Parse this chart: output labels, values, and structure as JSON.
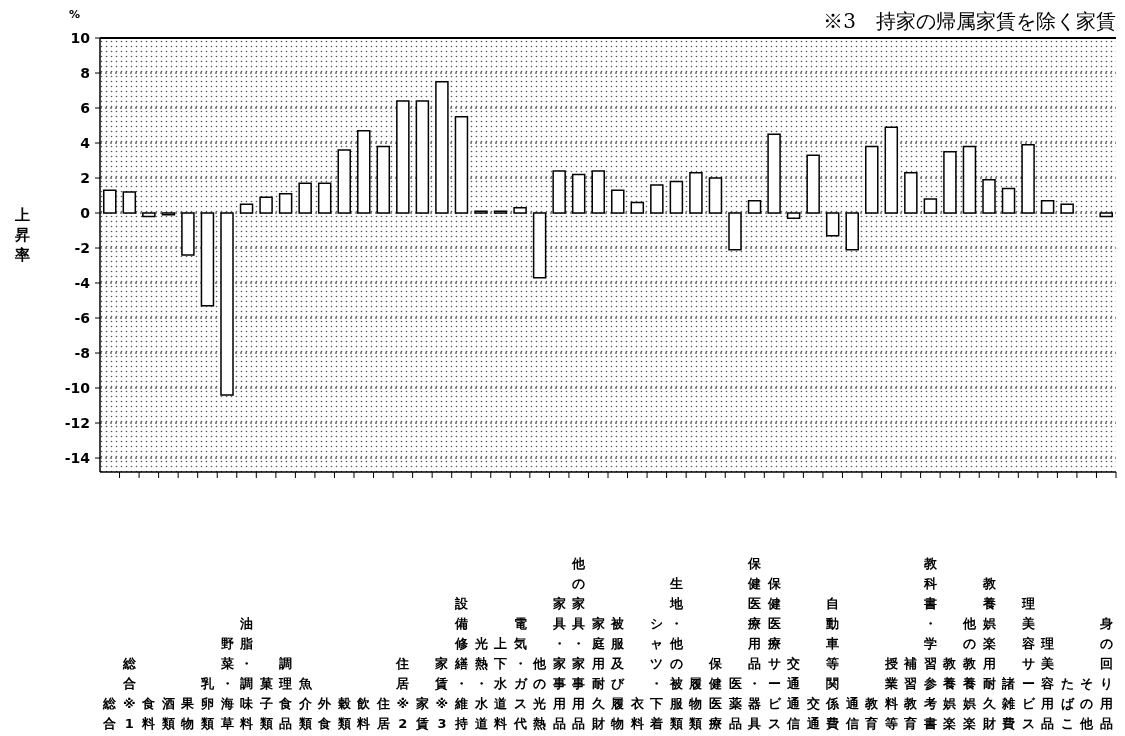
{
  "chart_data": {
    "type": "bar",
    "ylabel": "上昇率",
    "annotations": [
      "%",
      "※3　持家の帰属家賃を除く家賃"
    ],
    "categories": [
      "総合",
      "総合※1",
      "　食料",
      "　　酒類",
      "　　果物",
      "　　乳卵類",
      "　　野菜・海草",
      "　　油脂・調味料",
      "　　菓子類",
      "　　調理食品",
      "　　魚介類",
      "　　外食",
      "　　穀類",
      "　　飲料",
      "　住居",
      "　住居※2",
      "　　家賃",
      "　　家賃※3",
      "　　設備修繕・維持",
      "　光熱・水道",
      "　　上下水道料",
      "　　電気・ガス代",
      "　　他の光熱",
      "　家具・家事用品",
      "　　他の家具・家事用品",
      "　　家庭用耐久財",
      "　被服及び履物",
      "　　衣料",
      "　　シャツ・下着",
      "　　生地・他の被服類",
      "　　履物類",
      "　保健医療",
      "　　医薬品",
      "　　保健医療用品・器具",
      "　　保健医療サービス",
      "　交通通信",
      "　　交通",
      "　　自動車等関係費",
      "　　通信",
      "　教育",
      "　　授業料等",
      "　　補習教育",
      "　　教科書・学習参考書",
      "　教養娯楽",
      "　　他の教養娯楽",
      "　　教養娯楽用耐久財",
      "　諸雑費",
      "　　理美容サービス",
      "　　理美容用品",
      "　　たばこ",
      "　　その他",
      "　　身の回り用品"
    ],
    "values": [
      1.3,
      1.2,
      -0.2,
      -0.1,
      -2.4,
      -5.3,
      -10.4,
      0.5,
      0.9,
      1.1,
      1.7,
      1.7,
      3.6,
      4.7,
      3.8,
      6.4,
      6.4,
      7.5,
      5.5,
      0.1,
      0.1,
      0.3,
      -3.7,
      2.4,
      2.2,
      2.4,
      1.3,
      0.6,
      1.6,
      1.8,
      2.3,
      2.0,
      -2.1,
      0.7,
      4.5,
      -0.3,
      3.3,
      -1.3,
      -2.1,
      3.8,
      4.9,
      2.3,
      0.8,
      3.5,
      3.8,
      1.9,
      1.4,
      3.9,
      0.7,
      0.5,
      null,
      -0.2
    ],
    "color": "#ffffff",
    "ylim": [
      -14.8,
      10
    ],
    "yticks": [
      -14,
      -12,
      -10,
      -8,
      -6,
      -4,
      -2,
      0,
      2,
      4,
      6,
      8,
      10
    ],
    "grid": "y"
  }
}
